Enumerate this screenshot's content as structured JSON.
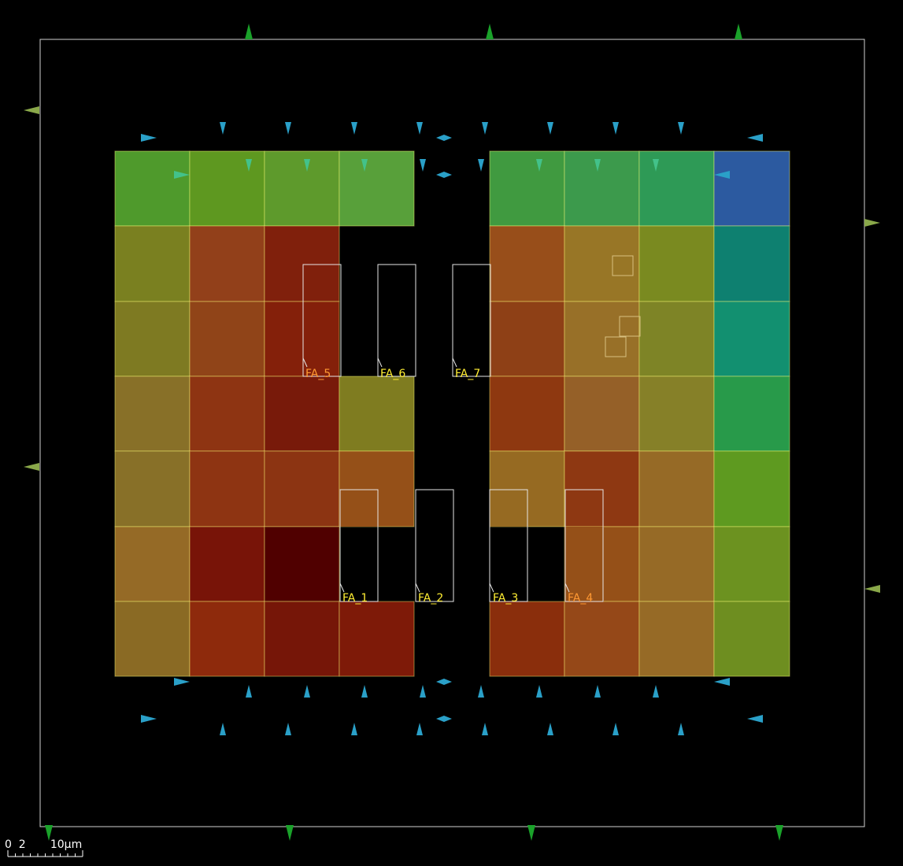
{
  "scale": {
    "text": "0  2       10µm"
  },
  "labels": [
    {
      "text": "FA_5",
      "color": "#ff9933"
    },
    {
      "text": "FA_6",
      "color": "#ffee33"
    },
    {
      "text": "FA_7",
      "color": "#ffee33"
    },
    {
      "text": "FA_1",
      "color": "#ffee33"
    },
    {
      "text": "FA_2",
      "color": "#ffee33"
    },
    {
      "text": "FA_3",
      "color": "#ffee33"
    },
    {
      "text": "FA_4",
      "color": "#ff9933"
    }
  ],
  "colors": {
    "boundary": "#d0d0d0",
    "arrow_blue": "#2aa0c8",
    "arrow_green": "#1aa22a",
    "arrow_olive": "#8aa84a",
    "arrow_teal": "#43c28a"
  }
}
